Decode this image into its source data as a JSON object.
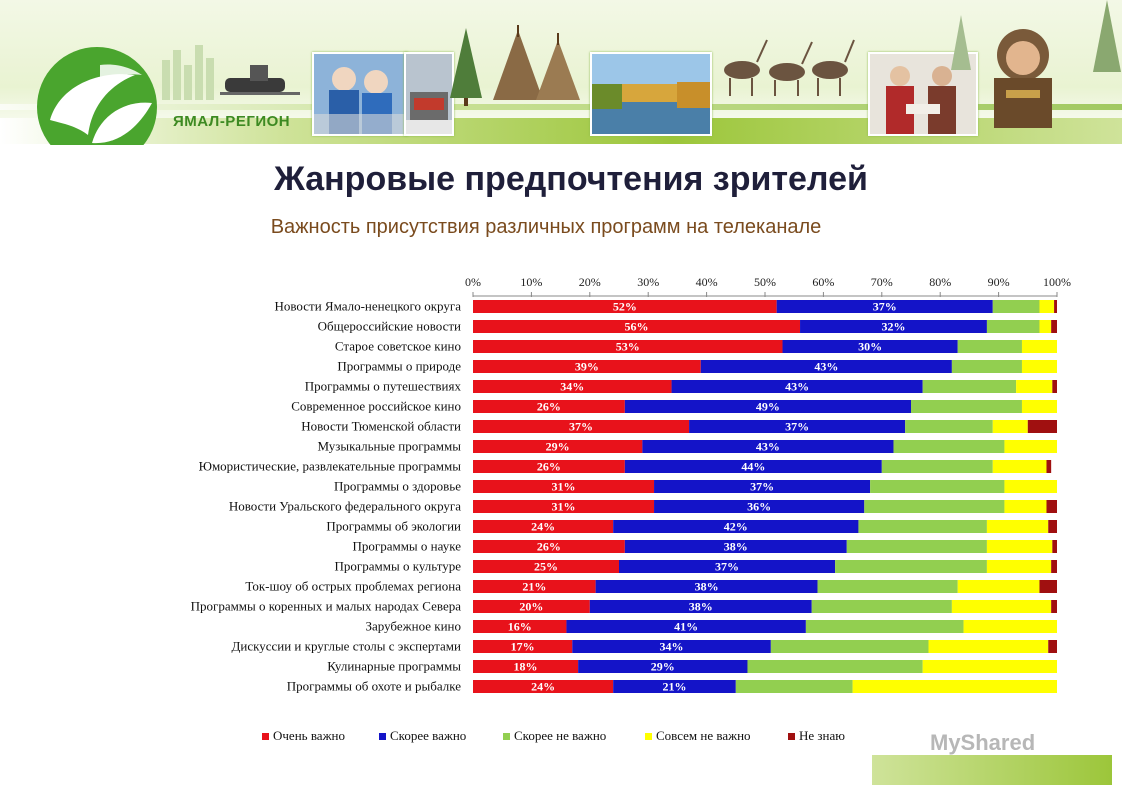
{
  "header": {
    "brand": "ЯМАЛ-РЕГИОН",
    "title": "Жанровые предпочтения зрителей",
    "subtitle": "Важность присутствия различных программ на телеканале"
  },
  "watermark": "MyShared",
  "colors": {
    "very_important": "#e8121b",
    "rather_important": "#1414c8",
    "rather_not_important": "#92cf50",
    "not_important": "#ffff00",
    "dont_know": "#a01010"
  },
  "chart_data": {
    "type": "bar",
    "orientation": "horizontal",
    "stacked": "percent",
    "x_ticks": [
      "0%",
      "10%",
      "20%",
      "30%",
      "40%",
      "50%",
      "60%",
      "70%",
      "80%",
      "90%",
      "100%"
    ],
    "xlim": [
      0,
      100
    ],
    "legend_position": "bottom",
    "categories": [
      "Новости Ямало-ненецкого округа",
      "Общероссийские новости",
      "Старое советское кино",
      "Программы о природе",
      "Программы о путешествиях",
      "Современное российское кино",
      "Новости Тюменской области",
      "Музыкальные программы",
      "Юмористические, развлекательные программы",
      "Программы о здоровье",
      "Новости Уральского федерального округа",
      "Программы об экологии",
      "Программы о науке",
      "Программы о культуре",
      "Ток-шоу об острых проблемах региона",
      "Программы о коренных и малых народах Севера",
      "Зарубежное кино",
      "Дискуссии и круглые столы с экспертами",
      "Кулинарные программы",
      "Программы об охоте и рыбалке"
    ],
    "series": [
      {
        "name": "Очень важно",
        "color": "#e8121b",
        "values": [
          52,
          56,
          53,
          39,
          34,
          26,
          37,
          29,
          26,
          31,
          31,
          24,
          26,
          25,
          21,
          20,
          16,
          17,
          18,
          24
        ],
        "labels": [
          "52%",
          "56%",
          "53%",
          "39%",
          "34%",
          "26%",
          "37%",
          "29%",
          "26%",
          "31%",
          "31%",
          "24%",
          "26%",
          "25%",
          "21%",
          "20%",
          "16%",
          "17%",
          "18%",
          "24%"
        ]
      },
      {
        "name": "Скорее важно",
        "color": "#1414c8",
        "values": [
          37,
          32,
          30,
          43,
          43,
          49,
          37,
          43,
          44,
          37,
          36,
          42,
          38,
          37,
          38,
          38,
          41,
          34,
          29,
          21
        ],
        "labels": [
          "37%",
          "32%",
          "30%",
          "43%",
          "43%",
          "49%",
          "37%",
          "43%",
          "44%",
          "37%",
          "36%",
          "42%",
          "38%",
          "37%",
          "38%",
          "38%",
          "41%",
          "34%",
          "29%",
          "21%"
        ]
      },
      {
        "name": "Скорее не важно",
        "color": "#92cf50",
        "values": [
          8,
          9,
          11,
          12,
          16,
          19,
          15,
          19,
          19,
          23,
          24,
          22,
          24,
          26,
          24,
          24,
          27,
          27,
          30,
          20
        ]
      },
      {
        "name": "Совсем не важно",
        "color": "#ffff00",
        "values": [
          2.5,
          2,
          6,
          6,
          6.2,
          6,
          6,
          9,
          9.2,
          9,
          7.2,
          10.5,
          11.2,
          11,
          14,
          17,
          16,
          20.5,
          23,
          35
        ]
      },
      {
        "name": "Не знаю",
        "color": "#a01010",
        "values": [
          0.5,
          1,
          0,
          0,
          0.8,
          0,
          5,
          0,
          0.8,
          0,
          1.8,
          1.5,
          0.8,
          1,
          3,
          1,
          0,
          1.5,
          0,
          0
        ]
      }
    ]
  }
}
